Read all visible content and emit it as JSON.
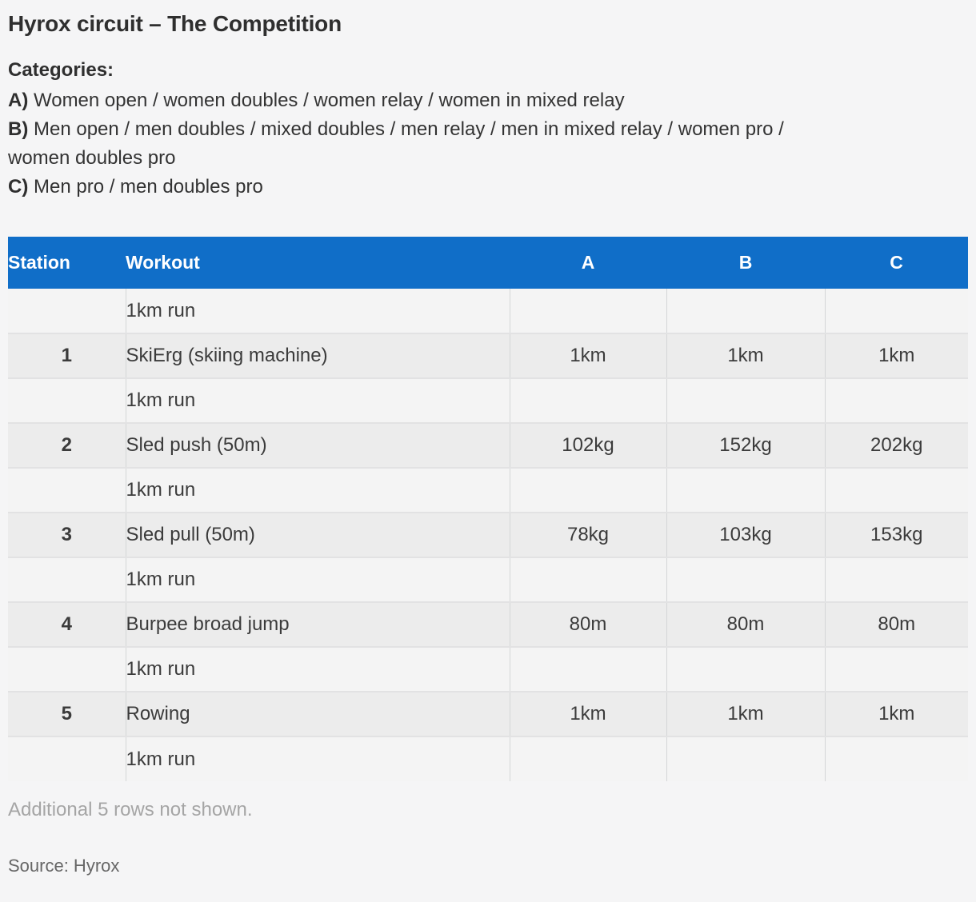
{
  "theme": {
    "page_bg": "#f5f5f6",
    "header_bg": "#106ec8",
    "header_text": "#ffffff",
    "station_row_bg": "#ececec",
    "run_row_bg": "#f4f4f4",
    "body_text": "#3b3b3b",
    "note_text": "#a5a5a5",
    "source_text": "#666666"
  },
  "categories": {
    "heading": "Categories:",
    "items": [
      {
        "prefix": "A)",
        "text": "Women open / women doubles / women relay / women in mixed relay"
      },
      {
        "prefix": "B)",
        "text": "Men open / men doubles / mixed doubles / men relay / men in mixed relay / women pro /\nwomen doubles pro"
      },
      {
        "prefix": "C)",
        "text": "Men pro / men doubles pro"
      }
    ]
  },
  "chart_data": {
    "type": "table",
    "title": "Hyrox circuit – The Competition",
    "columns": [
      "Station",
      "Workout",
      "A",
      "B",
      "C"
    ],
    "rows": [
      {
        "station": "",
        "workout": "1km run",
        "a": "",
        "b": "",
        "c": ""
      },
      {
        "station": "1",
        "workout": "SkiErg (skiing machine)",
        "a": "1km",
        "b": "1km",
        "c": "1km"
      },
      {
        "station": "",
        "workout": "1km run",
        "a": "",
        "b": "",
        "c": ""
      },
      {
        "station": "2",
        "workout": "Sled push (50m)",
        "a": "102kg",
        "b": "152kg",
        "c": "202kg"
      },
      {
        "station": "",
        "workout": "1km run",
        "a": "",
        "b": "",
        "c": ""
      },
      {
        "station": "3",
        "workout": "Sled pull (50m)",
        "a": "78kg",
        "b": "103kg",
        "c": "153kg"
      },
      {
        "station": "",
        "workout": "1km run",
        "a": "",
        "b": "",
        "c": ""
      },
      {
        "station": "4",
        "workout": "Burpee broad jump",
        "a": "80m",
        "b": "80m",
        "c": "80m"
      },
      {
        "station": "",
        "workout": "1km run",
        "a": "",
        "b": "",
        "c": ""
      },
      {
        "station": "5",
        "workout": "Rowing",
        "a": "1km",
        "b": "1km",
        "c": "1km"
      },
      {
        "station": "",
        "workout": "1km run",
        "a": "",
        "b": "",
        "c": ""
      }
    ],
    "note": "Additional 5 rows not shown.",
    "source": "Source: Hyrox"
  }
}
